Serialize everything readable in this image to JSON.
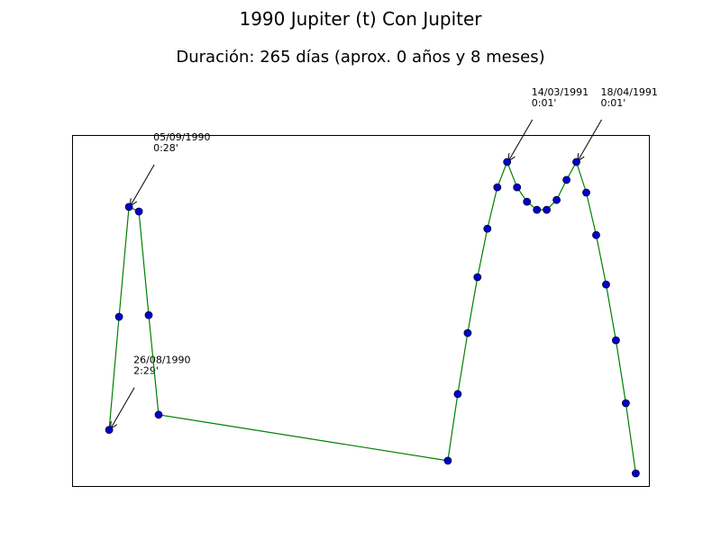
{
  "chart_data": {
    "type": "line",
    "title": "1990 Jupiter (t) Con Jupiter",
    "subtitle": "Duración: 265 días (aprox. 0 años y 8 meses)",
    "xlabel": "",
    "ylabel": "",
    "grid": false,
    "axis_ticks": false,
    "colors": {
      "line": "#008000",
      "marker_fill": "#0000cc",
      "marker_edge": "#000033",
      "frame": "#000000"
    },
    "xlim": [
      0,
      700
    ],
    "ylim": [
      0,
      100
    ],
    "points": [
      {
        "x": 45,
        "y": 16.0
      },
      {
        "x": 57,
        "y": 48.2
      },
      {
        "x": 69,
        "y": 79.5
      },
      {
        "x": 81,
        "y": 78.2
      },
      {
        "x": 93,
        "y": 48.7
      },
      {
        "x": 105,
        "y": 20.3
      },
      {
        "x": 456,
        "y": 7.2
      },
      {
        "x": 468,
        "y": 26.2
      },
      {
        "x": 480,
        "y": 43.6
      },
      {
        "x": 492,
        "y": 59.5
      },
      {
        "x": 504,
        "y": 73.3
      },
      {
        "x": 516,
        "y": 85.1
      },
      {
        "x": 528,
        "y": 92.3
      },
      {
        "x": 540,
        "y": 85.1
      },
      {
        "x": 552,
        "y": 81.0
      },
      {
        "x": 564,
        "y": 78.7
      },
      {
        "x": 576,
        "y": 78.7
      },
      {
        "x": 588,
        "y": 81.5
      },
      {
        "x": 600,
        "y": 87.2
      },
      {
        "x": 612,
        "y": 92.3
      },
      {
        "x": 624,
        "y": 83.6
      },
      {
        "x": 636,
        "y": 71.5
      },
      {
        "x": 648,
        "y": 57.4
      },
      {
        "x": 660,
        "y": 41.5
      },
      {
        "x": 672,
        "y": 23.6
      },
      {
        "x": 684,
        "y": 3.6
      }
    ],
    "annotations": [
      {
        "point_index": 0,
        "date": "26/08/1990",
        "value": "2:29'"
      },
      {
        "point_index": 2,
        "date": "05/09/1990",
        "value": "0:28'"
      },
      {
        "point_index": 12,
        "date": "14/03/1991",
        "value": "0:01'"
      },
      {
        "point_index": 19,
        "date": "18/04/1991",
        "value": "0:01'"
      }
    ]
  }
}
